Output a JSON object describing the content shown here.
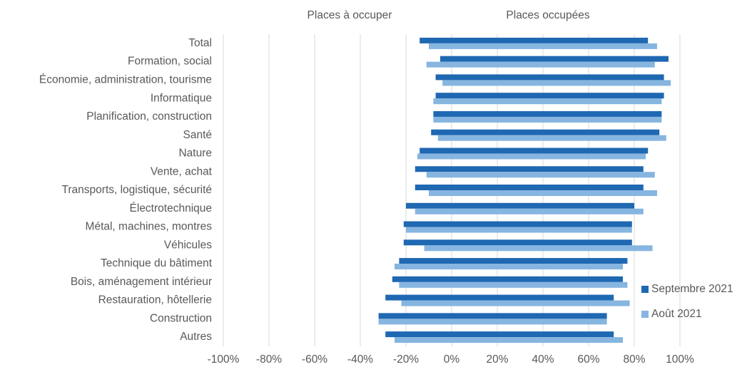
{
  "chart_data": {
    "type": "diverging_bar",
    "annotations": [
      "Places à occuper",
      "Places occupées"
    ],
    "categories": [
      "Total",
      "Formation, social",
      "Économie, administration, tourisme",
      "Informatique",
      "Planification, construction",
      "Santé",
      "Nature",
      "Vente, achat",
      "Transports, logistique, sécurité",
      "Électrotechnique",
      "Métal, machines, montres",
      "Véhicules",
      "Technique du bâtiment",
      "Bois, aménagement intérieur",
      "Restauration, hôtellerie",
      "Construction",
      "Autres"
    ],
    "series": [
      {
        "name": "Septembre 2021",
        "color": "#1f68b2",
        "values": [
          86,
          95,
          93,
          93,
          92,
          91,
          86,
          84,
          84,
          80,
          79,
          79,
          77,
          75,
          71,
          68,
          71
        ],
        "open_values": [
          -14,
          -5,
          -7,
          -7,
          -8,
          -9,
          -14,
          -16,
          -16,
          -20,
          -21,
          -21,
          -23,
          -26,
          -29,
          -32,
          -29
        ]
      },
      {
        "name": "Août 2021",
        "color": "#86b5e0",
        "values": [
          90,
          89,
          96,
          92,
          92,
          94,
          85,
          89,
          90,
          84,
          79,
          88,
          75,
          77,
          78,
          68,
          75
        ],
        "open_values": [
          -10,
          -11,
          -4,
          -8,
          -8,
          -6,
          -15,
          -11,
          -10,
          -16,
          -20,
          -12,
          -25,
          -23,
          -22,
          -32,
          -25
        ]
      }
    ],
    "xlim": [
      -100,
      100
    ],
    "xticks": [
      {
        "value": -100,
        "label": "-100%"
      },
      {
        "value": -80,
        "label": "-80%"
      },
      {
        "value": -60,
        "label": "-60%"
      },
      {
        "value": -40,
        "label": "-40%"
      },
      {
        "value": -20,
        "label": "-20%"
      },
      {
        "value": 0,
        "label": "0%"
      },
      {
        "value": 20,
        "label": "20%"
      },
      {
        "value": 40,
        "label": "40%"
      },
      {
        "value": 60,
        "label": "60%"
      },
      {
        "value": 80,
        "label": "80%"
      },
      {
        "value": 100,
        "label": "100%"
      }
    ],
    "grid": true,
    "legend": "bottom-right"
  }
}
